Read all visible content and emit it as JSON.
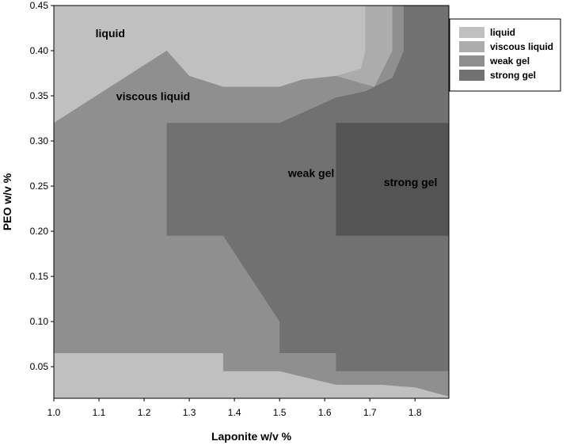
{
  "chart_data": {
    "type": "contour",
    "xlabel": "Laponite w/v %",
    "ylabel": "PEO w/v %",
    "xlim": [
      1.0,
      1.875
    ],
    "ylim": [
      0.015,
      0.45
    ],
    "x_ticks": [
      "1.0",
      "1.1",
      "1.2",
      "1.3",
      "1.4",
      "1.5",
      "1.6",
      "1.7",
      "1.8"
    ],
    "y_ticks": [
      "0.05",
      "0.10",
      "0.15",
      "0.20",
      "0.25",
      "0.30",
      "0.35",
      "0.40",
      "0.45"
    ],
    "grid": false,
    "legend_position": "top-right",
    "colors": {
      "liquid": "#c0c0c0",
      "viscous_liquid": "#acacac",
      "weak_gel": "#8f8f8f",
      "strong_gel": "#717171",
      "strongest": "#545454"
    },
    "legend": [
      {
        "label": "liquid",
        "color": "#c0c0c0"
      },
      {
        "label": "viscous liquid",
        "color": "#acacac"
      },
      {
        "label": "weak gel",
        "color": "#8f8f8f"
      },
      {
        "label": "strong gel",
        "color": "#717171"
      }
    ],
    "annotations": [
      {
        "text": "liquid",
        "x": 1.125,
        "y": 0.415
      },
      {
        "text": "viscous liquid",
        "x": 1.22,
        "y": 0.345
      },
      {
        "text": "weak gel",
        "x": 1.57,
        "y": 0.26
      },
      {
        "text": "strong gel",
        "x": 1.79,
        "y": 0.25
      }
    ],
    "regions": [
      {
        "level": "viscous_liquid",
        "color": "#acacac",
        "polygons": [
          [
            [
              1.0,
              0.015
            ],
            [
              1.875,
              0.015
            ],
            [
              1.875,
              0.45
            ],
            [
              1.0,
              0.45
            ]
          ]
        ]
      },
      {
        "level": "liquid",
        "color": "#c0c0c0",
        "polygons": [
          [
            [
              1.0,
              0.015
            ],
            [
              1.875,
              0.015
            ],
            [
              1.875,
              0.017
            ],
            [
              1.8,
              0.027
            ],
            [
              1.725,
              0.03
            ],
            [
              1.625,
              0.03
            ],
            [
              1.5,
              0.045
            ],
            [
              1.375,
              0.045
            ],
            [
              1.375,
              0.065
            ],
            [
              1.0,
              0.065
            ]
          ],
          [
            [
              1.0,
              0.45
            ],
            [
              1.0,
              0.32
            ],
            [
              1.25,
              0.4
            ],
            [
              1.3,
              0.372
            ],
            [
              1.375,
              0.36
            ],
            [
              1.5,
              0.36
            ],
            [
              1.55,
              0.368
            ],
            [
              1.625,
              0.372
            ],
            [
              1.68,
              0.38
            ],
            [
              1.69,
              0.4
            ],
            [
              1.69,
              0.45
            ]
          ]
        ]
      },
      {
        "level": "weak_gel",
        "color": "#8f8f8f",
        "polygons": [
          [
            [
              1.0,
              0.065
            ],
            [
              1.375,
              0.065
            ],
            [
              1.375,
              0.045
            ],
            [
              1.5,
              0.045
            ],
            [
              1.625,
              0.03
            ],
            [
              1.725,
              0.03
            ],
            [
              1.8,
              0.027
            ],
            [
              1.875,
              0.017
            ],
            [
              1.875,
              0.45
            ],
            [
              1.75,
              0.45
            ],
            [
              1.75,
              0.4
            ],
            [
              1.71,
              0.36
            ],
            [
              1.625,
              0.372
            ],
            [
              1.55,
              0.368
            ],
            [
              1.5,
              0.36
            ],
            [
              1.375,
              0.36
            ],
            [
              1.3,
              0.372
            ],
            [
              1.25,
              0.4
            ],
            [
              1.0,
              0.32
            ]
          ]
        ]
      },
      {
        "level": "strong_gel",
        "color": "#717171",
        "polygons": [
          [
            [
              1.25,
              0.195
            ],
            [
              1.375,
              0.195
            ],
            [
              1.5,
              0.1
            ],
            [
              1.5,
              0.065
            ],
            [
              1.625,
              0.065
            ],
            [
              1.625,
              0.045
            ],
            [
              1.875,
              0.045
            ],
            [
              1.875,
              0.45
            ],
            [
              1.775,
              0.45
            ],
            [
              1.775,
              0.4
            ],
            [
              1.75,
              0.37
            ],
            [
              1.69,
              0.355
            ],
            [
              1.625,
              0.348
            ],
            [
              1.5,
              0.32
            ],
            [
              1.25,
              0.32
            ]
          ]
        ]
      },
      {
        "level": "strongest",
        "color": "#545454",
        "polygons": [
          [
            [
              1.625,
              0.195
            ],
            [
              1.875,
              0.195
            ],
            [
              1.875,
              0.32
            ],
            [
              1.625,
              0.32
            ]
          ]
        ]
      }
    ]
  }
}
